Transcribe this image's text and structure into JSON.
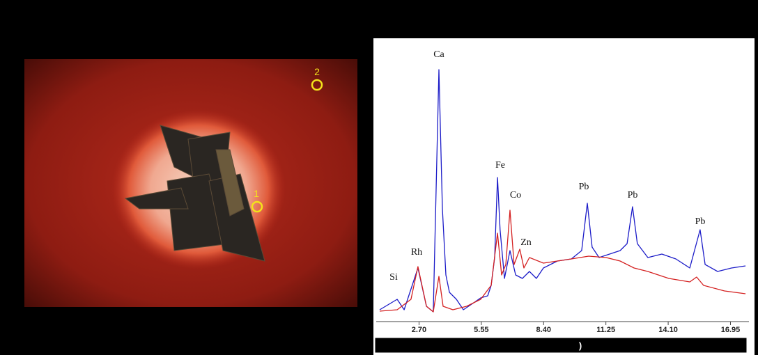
{
  "photo": {
    "markers": [
      "1",
      "2"
    ]
  },
  "chart_data": {
    "type": "line",
    "caption": ")",
    "annotations": [
      "Si",
      "Rh",
      "Ca",
      "Fe",
      "Co",
      "Zn",
      "Pb",
      "Pb",
      "Pb"
    ],
    "xlim": [
      0.9,
      17.7
    ],
    "ylim": [
      0,
      100
    ],
    "xticks": [
      {
        "value": 2.7,
        "label": "2.70"
      },
      {
        "value": 5.55,
        "label": "5.55"
      },
      {
        "value": 8.4,
        "label": "8.40"
      },
      {
        "value": 11.25,
        "label": "11.25"
      },
      {
        "value": 14.1,
        "label": "14.10"
      },
      {
        "value": 16.95,
        "label": "16.95"
      }
    ],
    "series": [
      {
        "color": "#1c1cc8",
        "x": [
          0.9,
          1.7,
          2.02,
          2.65,
          3.04,
          3.35,
          3.61,
          3.77,
          3.93,
          4.09,
          4.41,
          4.73,
          5.2,
          5.52,
          5.84,
          6.0,
          6.16,
          6.29,
          6.41,
          6.61,
          6.86,
          7.12,
          7.43,
          7.75,
          8.07,
          8.39,
          8.71,
          9.03,
          9.67,
          10.14,
          10.4,
          10.62,
          10.94,
          11.42,
          11.9,
          12.22,
          12.47,
          12.69,
          13.17,
          13.81,
          14.45,
          15.09,
          15.56,
          15.79,
          16.36,
          17.0,
          17.64
        ],
        "values": [
          3.75,
          7.5,
          3.75,
          18.75,
          5,
          3,
          90,
          40,
          16.25,
          10,
          7.5,
          3.75,
          6.25,
          8,
          8.75,
          12.5,
          22.5,
          51.25,
          32.5,
          15,
          25,
          16.25,
          15,
          17.5,
          15,
          18.75,
          20,
          21.25,
          22,
          25,
          42,
          26.25,
          22.5,
          23.75,
          25,
          27.5,
          40.75,
          27.5,
          22.5,
          23.75,
          22,
          18.75,
          32.5,
          20,
          17.5,
          18.75,
          19.5
        ]
      },
      {
        "color": "#d42020",
        "x": [
          0.9,
          1.7,
          2.33,
          2.65,
          3.04,
          3.35,
          3.61,
          3.8,
          4.25,
          4.88,
          5.52,
          6.0,
          6.29,
          6.48,
          6.67,
          6.86,
          7.05,
          7.31,
          7.5,
          7.75,
          8.39,
          9.03,
          9.67,
          10.46,
          11.26,
          11.9,
          12.54,
          13.17,
          14.13,
          15.09,
          15.4,
          15.72,
          16.68,
          17.64
        ],
        "values": [
          3.25,
          3.75,
          7.5,
          19.25,
          5,
          3,
          15.75,
          5,
          3.75,
          5,
          7.5,
          12.5,
          31.25,
          16.25,
          20,
          39.5,
          20,
          25.5,
          18.75,
          22.5,
          20.5,
          21.25,
          22,
          23,
          22.5,
          21.25,
          18.75,
          17.5,
          15,
          13.75,
          15.5,
          12.5,
          10.5,
          9.5
        ]
      }
    ]
  }
}
